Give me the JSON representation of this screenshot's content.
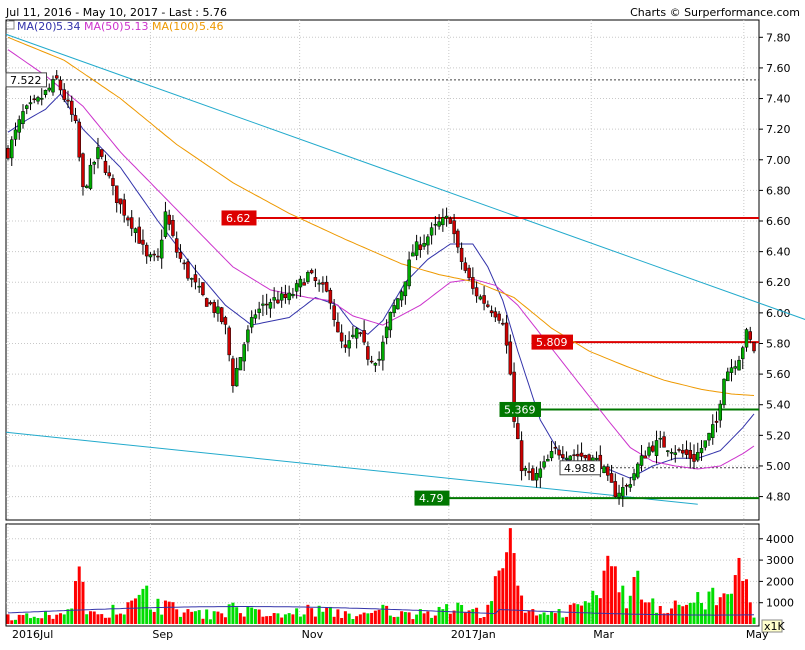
{
  "chart_data": {
    "type": "candlestick",
    "header": "Jul 11, 2016 - May 10, 2017 - Last : 5.76",
    "credit": "Charts © Surperformance.com",
    "legend": [
      {
        "label": "MA(20)",
        "value": "5.34",
        "color": "#3333aa"
      },
      {
        "label": "MA(50)",
        "value": "5.13",
        "color": "#cc33cc"
      },
      {
        "label": "MA(100)",
        "value": "5.46",
        "color": "#ee9900"
      }
    ],
    "price_axis": {
      "ylim": [
        4.66,
        7.9
      ],
      "ticks": [
        "7.80",
        "7.60",
        "7.40",
        "7.20",
        "7.00",
        "6.80",
        "6.60",
        "6.40",
        "6.20",
        "6.00",
        "5.80",
        "5.60",
        "5.40",
        "5.20",
        "5.00",
        "4.80"
      ]
    },
    "volume_axis": {
      "ylim": [
        0,
        4600
      ],
      "ticks": [
        "4000",
        "3000",
        "2000",
        "1000"
      ],
      "multiplier": "x1K"
    },
    "x_labels": [
      "2016Jul",
      "Sep",
      "Nov",
      "2017Jan",
      "Mar",
      "May"
    ],
    "horizontal_levels": [
      {
        "label": "7.522",
        "value": 7.522,
        "color": "#444444",
        "style": "dotted",
        "box": "white"
      },
      {
        "label": "6.62",
        "value": 6.62,
        "color": "#dd0000",
        "style": "solid",
        "box": "red"
      },
      {
        "label": "5.809",
        "value": 5.809,
        "color": "#dd0000",
        "style": "solid",
        "box": "red"
      },
      {
        "label": "5.369",
        "value": 5.369,
        "color": "#007700",
        "style": "solid",
        "box": "green"
      },
      {
        "label": "4.988",
        "value": 4.988,
        "color": "#444444",
        "style": "dotted",
        "box": "white"
      },
      {
        "label": "4.79",
        "value": 4.79,
        "color": "#007700",
        "style": "solid",
        "box": "green"
      }
    ],
    "trendlines": [
      {
        "name": "upper",
        "from": [
          0,
          7.82
        ],
        "to": [
          218,
          5.91
        ],
        "color": "#22aacc"
      },
      {
        "name": "lower",
        "from": [
          0,
          5.22
        ],
        "to": [
          184,
          4.75
        ],
        "color": "#22aacc"
      }
    ],
    "close_points": [
      [
        0,
        7.05
      ],
      [
        4,
        7.3
      ],
      [
        8,
        7.38
      ],
      [
        13,
        7.52
      ],
      [
        16,
        7.35
      ],
      [
        18,
        7.22
      ],
      [
        20,
        6.8
      ],
      [
        24,
        7.05
      ],
      [
        26,
        6.95
      ],
      [
        28,
        6.8
      ],
      [
        30,
        6.7
      ],
      [
        34,
        6.55
      ],
      [
        37,
        6.35
      ],
      [
        40,
        6.35
      ],
      [
        42,
        6.65
      ],
      [
        45,
        6.4
      ],
      [
        48,
        6.25
      ],
      [
        52,
        6.1
      ],
      [
        56,
        6.0
      ],
      [
        58,
        5.9
      ],
      [
        60,
        5.55
      ],
      [
        63,
        5.8
      ],
      [
        66,
        6.0
      ],
      [
        70,
        6.08
      ],
      [
        75,
        6.1
      ],
      [
        80,
        6.25
      ],
      [
        84,
        6.15
      ],
      [
        86,
        6.1
      ],
      [
        88,
        5.85
      ],
      [
        90,
        5.75
      ],
      [
        93,
        5.88
      ],
      [
        96,
        5.72
      ],
      [
        99,
        5.7
      ],
      [
        102,
        5.98
      ],
      [
        105,
        6.15
      ],
      [
        108,
        6.4
      ],
      [
        112,
        6.5
      ],
      [
        115,
        6.58
      ],
      [
        118,
        6.62
      ],
      [
        120,
        6.4
      ],
      [
        124,
        6.15
      ],
      [
        128,
        6.05
      ],
      [
        132,
        5.96
      ],
      [
        134,
        5.6
      ],
      [
        135,
        5.28
      ],
      [
        137,
        5.0
      ],
      [
        140,
        4.9
      ],
      [
        143,
        5.0
      ],
      [
        146,
        5.1
      ],
      [
        150,
        5.08
      ],
      [
        154,
        5.06
      ],
      [
        158,
        5.02
      ],
      [
        160,
        4.9
      ],
      [
        162,
        4.83
      ],
      [
        165,
        4.86
      ],
      [
        168,
        5.0
      ],
      [
        171,
        5.12
      ],
      [
        174,
        5.15
      ],
      [
        177,
        5.12
      ],
      [
        180,
        5.08
      ],
      [
        183,
        5.05
      ],
      [
        186,
        5.15
      ],
      [
        189,
        5.28
      ],
      [
        191,
        5.6
      ],
      [
        193,
        5.65
      ],
      [
        195,
        5.72
      ],
      [
        197,
        5.86
      ],
      [
        199,
        5.76
      ]
    ],
    "ma_points": {
      "MA(20)": [
        [
          0,
          7.18
        ],
        [
          5,
          7.26
        ],
        [
          10,
          7.33
        ],
        [
          14,
          7.43
        ],
        [
          20,
          7.2
        ],
        [
          30,
          6.95
        ],
        [
          40,
          6.6
        ],
        [
          50,
          6.28
        ],
        [
          58,
          6.05
        ],
        [
          65,
          5.92
        ],
        [
          75,
          5.97
        ],
        [
          82,
          6.1
        ],
        [
          88,
          6.05
        ],
        [
          92,
          5.92
        ],
        [
          96,
          5.86
        ],
        [
          100,
          5.95
        ],
        [
          106,
          6.2
        ],
        [
          112,
          6.35
        ],
        [
          118,
          6.45
        ],
        [
          124,
          6.45
        ],
        [
          128,
          6.3
        ],
        [
          132,
          6.08
        ],
        [
          136,
          5.75
        ],
        [
          142,
          5.3
        ],
        [
          148,
          5.05
        ],
        [
          154,
          5.0
        ],
        [
          160,
          4.98
        ],
        [
          166,
          4.92
        ],
        [
          172,
          5.0
        ],
        [
          178,
          5.05
        ],
        [
          184,
          5.05
        ],
        [
          190,
          5.1
        ],
        [
          196,
          5.25
        ],
        [
          199,
          5.34
        ]
      ],
      "MA(50)": [
        [
          0,
          7.72
        ],
        [
          10,
          7.55
        ],
        [
          20,
          7.35
        ],
        [
          30,
          7.05
        ],
        [
          40,
          6.8
        ],
        [
          50,
          6.55
        ],
        [
          60,
          6.3
        ],
        [
          70,
          6.15
        ],
        [
          80,
          6.1
        ],
        [
          86,
          6.08
        ],
        [
          92,
          5.98
        ],
        [
          100,
          5.92
        ],
        [
          110,
          6.05
        ],
        [
          118,
          6.2
        ],
        [
          124,
          6.22
        ],
        [
          130,
          6.18
        ],
        [
          136,
          6.05
        ],
        [
          144,
          5.8
        ],
        [
          152,
          5.55
        ],
        [
          160,
          5.3
        ],
        [
          166,
          5.12
        ],
        [
          172,
          5.03
        ],
        [
          178,
          5.0
        ],
        [
          184,
          4.98
        ],
        [
          190,
          5.0
        ],
        [
          196,
          5.08
        ],
        [
          199,
          5.13
        ]
      ],
      "MA(100)": [
        [
          0,
          7.8
        ],
        [
          15,
          7.65
        ],
        [
          30,
          7.4
        ],
        [
          45,
          7.1
        ],
        [
          60,
          6.85
        ],
        [
          75,
          6.65
        ],
        [
          90,
          6.48
        ],
        [
          105,
          6.32
        ],
        [
          115,
          6.25
        ],
        [
          125,
          6.2
        ],
        [
          135,
          6.1
        ],
        [
          145,
          5.9
        ],
        [
          155,
          5.75
        ],
        [
          165,
          5.65
        ],
        [
          175,
          5.56
        ],
        [
          185,
          5.5
        ],
        [
          193,
          5.47
        ],
        [
          199,
          5.46
        ]
      ]
    },
    "volume_points": [
      [
        0,
        450
      ],
      [
        5,
        500
      ],
      [
        10,
        600
      ],
      [
        15,
        450
      ],
      [
        19,
        2700
      ],
      [
        22,
        600
      ],
      [
        28,
        900
      ],
      [
        34,
        1200
      ],
      [
        37,
        1800
      ],
      [
        42,
        1100
      ],
      [
        48,
        700
      ],
      [
        55,
        600
      ],
      [
        60,
        1000
      ],
      [
        66,
        700
      ],
      [
        72,
        500
      ],
      [
        80,
        900
      ],
      [
        86,
        800
      ],
      [
        90,
        600
      ],
      [
        96,
        500
      ],
      [
        100,
        900
      ],
      [
        105,
        600
      ],
      [
        110,
        700
      ],
      [
        115,
        800
      ],
      [
        120,
        1000
      ],
      [
        124,
        700
      ],
      [
        128,
        900
      ],
      [
        134,
        4500
      ],
      [
        136,
        1800
      ],
      [
        140,
        700
      ],
      [
        145,
        600
      ],
      [
        150,
        900
      ],
      [
        155,
        1000
      ],
      [
        160,
        3200
      ],
      [
        164,
        1800
      ],
      [
        168,
        2500
      ],
      [
        172,
        1200
      ],
      [
        178,
        1100
      ],
      [
        184,
        1500
      ],
      [
        188,
        1700
      ],
      [
        192,
        1400
      ],
      [
        195,
        3100
      ],
      [
        197,
        2100
      ],
      [
        199,
        300
      ]
    ]
  }
}
